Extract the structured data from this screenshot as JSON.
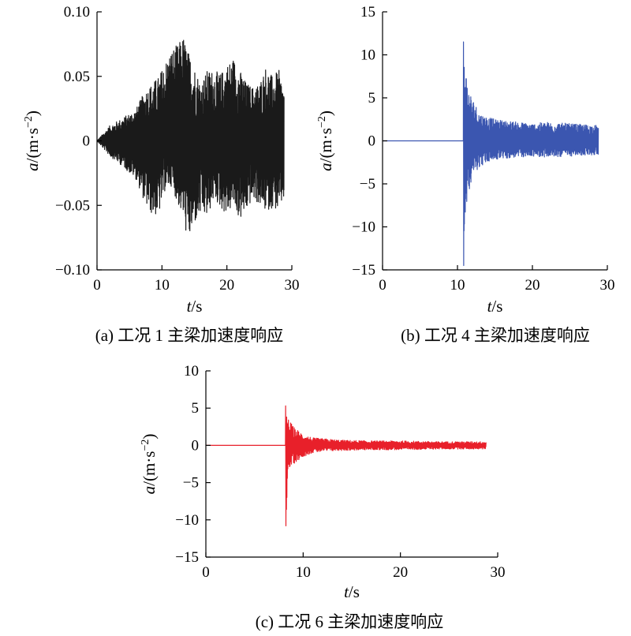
{
  "chart_data": [
    {
      "type": "line",
      "caption": "(a) 工况 1 主梁加速度响应",
      "xlabel_var": "t",
      "xlabel_unit": "/s",
      "ylabel_var": "a",
      "ylabel_unit": "/(m·s",
      "ylabel_exp": "−2",
      "ylabel_close": ")",
      "xlim": [
        0,
        30
      ],
      "ylim": [
        -0.1,
        0.1
      ],
      "xticks": [
        "0",
        "10",
        "20",
        "30"
      ],
      "xtick_values": [
        0,
        10,
        20,
        30
      ],
      "yticks": [
        "−0.10",
        "−0.05",
        "0",
        "0.05",
        "0.10"
      ],
      "ytick_values": [
        -0.1,
        -0.05,
        0,
        0.05,
        0.1
      ],
      "color": "#1a1a1a",
      "signal_end": 28.8,
      "envelope": {
        "t": [
          0,
          2,
          4,
          6,
          7.5,
          8.5,
          9.5,
          10.5,
          11.5,
          12.5,
          13.3,
          14,
          15,
          16,
          17,
          18,
          19,
          20,
          21,
          22,
          23,
          24,
          25,
          26,
          27,
          28,
          28.8
        ],
        "upper": [
          0,
          0.012,
          0.018,
          0.025,
          0.04,
          0.045,
          0.05,
          0.062,
          0.072,
          0.075,
          0.082,
          0.07,
          0.058,
          0.045,
          0.055,
          0.055,
          0.052,
          0.06,
          0.065,
          0.055,
          0.045,
          0.042,
          0.045,
          0.058,
          0.05,
          0.055,
          0.04
        ],
        "lower": [
          0,
          -0.012,
          -0.02,
          -0.03,
          -0.05,
          -0.058,
          -0.058,
          -0.038,
          -0.035,
          -0.05,
          -0.06,
          -0.08,
          -0.065,
          -0.058,
          -0.06,
          -0.045,
          -0.052,
          -0.058,
          -0.05,
          -0.062,
          -0.055,
          -0.045,
          -0.05,
          -0.055,
          -0.052,
          -0.055,
          -0.045
        ]
      }
    },
    {
      "type": "line",
      "caption": "(b) 工况 4 主梁加速度响应",
      "xlabel_var": "t",
      "xlabel_unit": "/s",
      "ylabel_var": "a",
      "ylabel_unit": "/(m·s",
      "ylabel_exp": "−2",
      "ylabel_close": ")",
      "xlim": [
        0,
        30
      ],
      "ylim": [
        -15,
        15
      ],
      "xticks": [
        "0",
        "10",
        "20",
        "30"
      ],
      "xtick_values": [
        0,
        10,
        20,
        30
      ],
      "yticks": [
        "−15",
        "−10",
        "−5",
        "0",
        "5",
        "10",
        "15"
      ],
      "ytick_values": [
        -15,
        -10,
        -5,
        0,
        5,
        10,
        15
      ],
      "color": "#3b56b0",
      "impact_time": 10.8,
      "peak_max": 11.5,
      "peak_min": -14.5,
      "signal_end": 28.8,
      "envelope": {
        "t": [
          10.8,
          11.0,
          11.5,
          12.0,
          13.0,
          14.0,
          15.0,
          17.0,
          20.0,
          22.0,
          25.0,
          28.8
        ],
        "upper": [
          11.5,
          9.0,
          6.0,
          5.0,
          3.2,
          2.8,
          2.5,
          2.3,
          2.0,
          2.2,
          2.0,
          1.8
        ],
        "lower": [
          -14.5,
          -8.5,
          -6.0,
          -4.0,
          -3.0,
          -2.5,
          -2.2,
          -2.0,
          -1.8,
          -1.9,
          -1.8,
          -1.6
        ]
      }
    },
    {
      "type": "line",
      "caption": "(c) 工况 6 主梁加速度响应",
      "xlabel_var": "t",
      "xlabel_unit": "/s",
      "ylabel_var": "a",
      "ylabel_unit": "/(m·s",
      "ylabel_exp": "−2",
      "ylabel_close": ")",
      "xlim": [
        0,
        30
      ],
      "ylim": [
        -15,
        10
      ],
      "xticks": [
        "0",
        "10",
        "20",
        "30"
      ],
      "xtick_values": [
        0,
        10,
        20,
        30
      ],
      "yticks": [
        "−15",
        "−10",
        "−5",
        "0",
        "5",
        "10"
      ],
      "ytick_values": [
        -15,
        -10,
        -5,
        0,
        5,
        10
      ],
      "color": "#e8202a",
      "impact_time": 8.2,
      "peak_max": 5.3,
      "peak_min": -10.8,
      "signal_end": 28.8,
      "envelope": {
        "t": [
          8.2,
          8.5,
          9.0,
          10.0,
          11.0,
          12.0,
          14.0,
          17.0,
          20.0,
          24.0,
          28.8
        ],
        "upper": [
          5.3,
          3.5,
          2.5,
          1.5,
          1.0,
          0.9,
          0.7,
          0.6,
          0.6,
          0.5,
          0.5
        ],
        "lower": [
          -10.8,
          -3.5,
          -2.5,
          -1.5,
          -1.0,
          -0.8,
          -0.7,
          -0.6,
          -0.6,
          -0.5,
          -0.5
        ]
      }
    }
  ]
}
